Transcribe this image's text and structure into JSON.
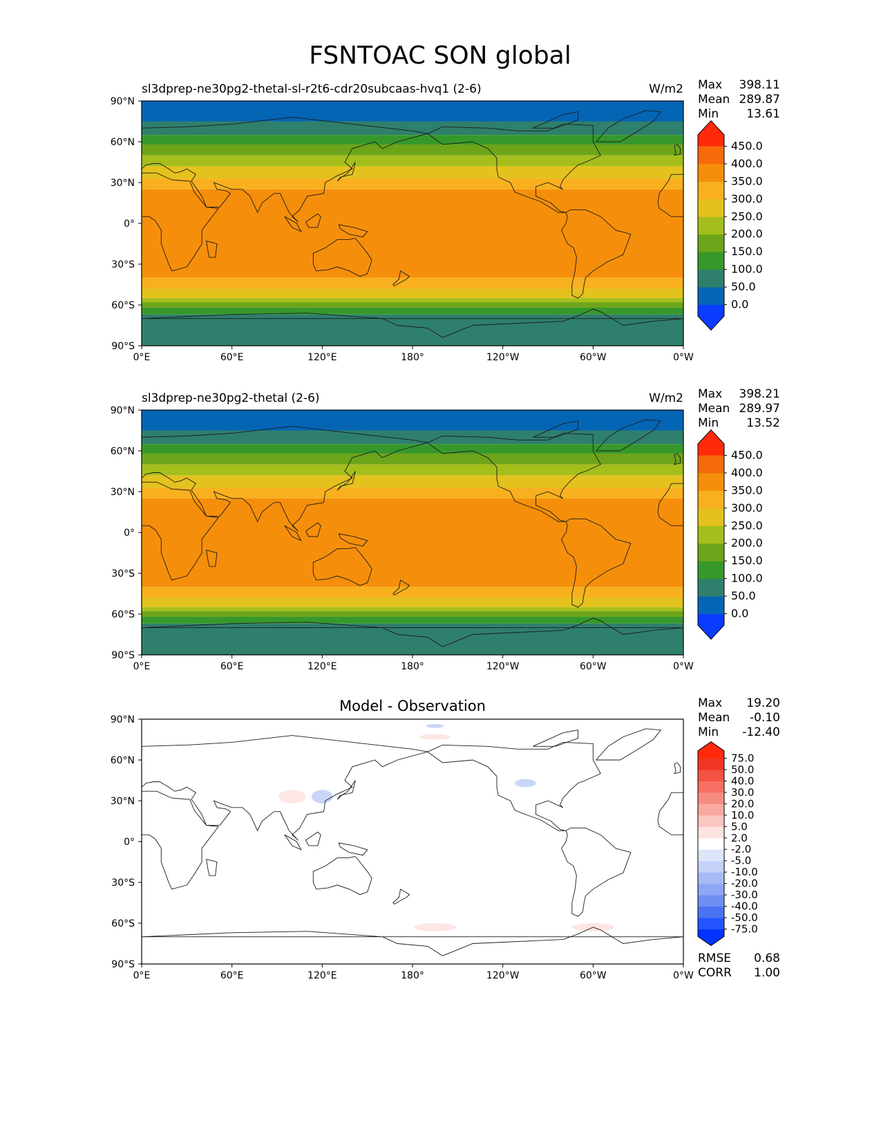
{
  "page_title": "FSNTOAC SON global",
  "chart_data": [
    {
      "type": "heatmap",
      "title": "sl3dprep-ne30pg2-thetal-sl-r2t6-cdr20subcaas-hvq1 (2-6)",
      "units": "W/m2",
      "stats": [
        [
          "Max",
          "398.11"
        ],
        [
          "Mean",
          "289.87"
        ],
        [
          "Min",
          "13.61"
        ]
      ],
      "colorbar": {
        "levels": [
          "0.0",
          "50.0",
          "100.0",
          "150.0",
          "200.0",
          "250.0",
          "300.0",
          "350.0",
          "400.0",
          "450.0"
        ],
        "colors": [
          "#0a3cff",
          "#0565b5",
          "#2f7f6d",
          "#36982b",
          "#6da41a",
          "#a4bf1c",
          "#e3c21e",
          "#f8b01e",
          "#f58f0b",
          "#f76a0a",
          "#ff2a0a"
        ]
      },
      "bands": [
        {
          "lat": [
            75,
            90
          ],
          "level": 1
        },
        {
          "lat": [
            65,
            75
          ],
          "level": 2
        },
        {
          "lat": [
            58,
            65
          ],
          "level": 3
        },
        {
          "lat": [
            50,
            58
          ],
          "level": 4
        },
        {
          "lat": [
            42,
            50
          ],
          "level": 5
        },
        {
          "lat": [
            33,
            42
          ],
          "level": 6
        },
        {
          "lat": [
            25,
            33
          ],
          "level": 7
        },
        {
          "lat": [
            -40,
            25
          ],
          "level": 8
        },
        {
          "lat": [
            -48,
            -40
          ],
          "level": 7
        },
        {
          "lat": [
            -55,
            -48
          ],
          "level": 6
        },
        {
          "lat": [
            -58,
            -55
          ],
          "level": 5
        },
        {
          "lat": [
            -62,
            -58
          ],
          "level": 4
        },
        {
          "lat": [
            -67,
            -62
          ],
          "level": 3
        },
        {
          "lat": [
            -90,
            -67
          ],
          "level": 2
        }
      ],
      "xticks": [
        "0°E",
        "60°E",
        "120°E",
        "180°",
        "120°W",
        "60°W",
        "0°W"
      ],
      "yticks": [
        "90°N",
        "60°N",
        "30°N",
        "0°",
        "30°S",
        "60°S",
        "90°S"
      ],
      "ylim": [
        -90,
        90
      ]
    },
    {
      "type": "heatmap",
      "title": "sl3dprep-ne30pg2-thetal (2-6)",
      "units": "W/m2",
      "stats": [
        [
          "Max",
          "398.21"
        ],
        [
          "Mean",
          "289.97"
        ],
        [
          "Min",
          "13.52"
        ]
      ],
      "colorbar": {
        "levels": [
          "0.0",
          "50.0",
          "100.0",
          "150.0",
          "200.0",
          "250.0",
          "300.0",
          "350.0",
          "400.0",
          "450.0"
        ],
        "colors": [
          "#0a3cff",
          "#0565b5",
          "#2f7f6d",
          "#36982b",
          "#6da41a",
          "#a4bf1c",
          "#e3c21e",
          "#f8b01e",
          "#f58f0b",
          "#f76a0a",
          "#ff2a0a"
        ]
      },
      "bands": [
        {
          "lat": [
            75,
            90
          ],
          "level": 1
        },
        {
          "lat": [
            65,
            75
          ],
          "level": 2
        },
        {
          "lat": [
            58,
            65
          ],
          "level": 3
        },
        {
          "lat": [
            50,
            58
          ],
          "level": 4
        },
        {
          "lat": [
            42,
            50
          ],
          "level": 5
        },
        {
          "lat": [
            33,
            42
          ],
          "level": 6
        },
        {
          "lat": [
            25,
            33
          ],
          "level": 7
        },
        {
          "lat": [
            -40,
            25
          ],
          "level": 8
        },
        {
          "lat": [
            -48,
            -40
          ],
          "level": 7
        },
        {
          "lat": [
            -55,
            -48
          ],
          "level": 6
        },
        {
          "lat": [
            -58,
            -55
          ],
          "level": 5
        },
        {
          "lat": [
            -62,
            -58
          ],
          "level": 4
        },
        {
          "lat": [
            -67,
            -62
          ],
          "level": 3
        },
        {
          "lat": [
            -90,
            -67
          ],
          "level": 2
        }
      ],
      "xticks": [
        "0°E",
        "60°E",
        "120°E",
        "180°",
        "120°W",
        "60°W",
        "0°W"
      ],
      "yticks": [
        "90°N",
        "60°N",
        "30°N",
        "0°",
        "30°S",
        "60°S",
        "90°S"
      ],
      "ylim": [
        -90,
        90
      ]
    },
    {
      "type": "heatmap",
      "title": "Model - Observation",
      "units": "",
      "stats": [
        [
          "Max",
          "19.20"
        ],
        [
          "Mean",
          "-0.10"
        ],
        [
          "Min",
          "-12.40"
        ]
      ],
      "metrics": [
        [
          "RMSE",
          "0.68"
        ],
        [
          "CORR",
          "1.00"
        ]
      ],
      "colorbar": {
        "levels": [
          "-75.0",
          "-50.0",
          "-40.0",
          "-30.0",
          "-20.0",
          "-10.0",
          "-5.0",
          "-2.0",
          "2.0",
          "5.0",
          "10.0",
          "20.0",
          "30.0",
          "40.0",
          "50.0",
          "75.0"
        ],
        "colors": [
          "#0033ff",
          "#2255ff",
          "#4b72f2",
          "#6f8ef2",
          "#8ea6f4",
          "#a8bbf6",
          "#c4d1f8",
          "#dde5fa",
          "#ffffff",
          "#fde3e0",
          "#fbc6c0",
          "#f9aaa1",
          "#f78d82",
          "#f57063",
          "#f35244",
          "#f13525",
          "#ff2a0a"
        ]
      },
      "anomalies": [
        {
          "lon": 100,
          "lat": 33,
          "rlon": 9,
          "rlat": 5,
          "sign": 1
        },
        {
          "lon": 120,
          "lat": 33,
          "rlon": 7,
          "rlat": 5,
          "sign": -1
        },
        {
          "lon": 195,
          "lat": -63,
          "rlon": 14,
          "rlat": 3,
          "sign": 1
        },
        {
          "lon": 300,
          "lat": -63,
          "rlon": 14,
          "rlat": 3,
          "sign": 1
        },
        {
          "lon": 255,
          "lat": 43,
          "rlon": 7,
          "rlat": 3,
          "sign": -1
        },
        {
          "lon": 195,
          "lat": 77,
          "rlon": 10,
          "rlat": 2,
          "sign": 1
        },
        {
          "lon": 195,
          "lat": 85,
          "rlon": 6,
          "rlat": 1.5,
          "sign": -1
        }
      ],
      "xticks": [
        "0°E",
        "60°E",
        "120°E",
        "180°",
        "120°W",
        "60°W",
        "0°W"
      ],
      "yticks": [
        "90°N",
        "60°N",
        "30°N",
        "0°",
        "30°S",
        "60°S",
        "90°S"
      ],
      "ylim": [
        -90,
        90
      ]
    }
  ]
}
